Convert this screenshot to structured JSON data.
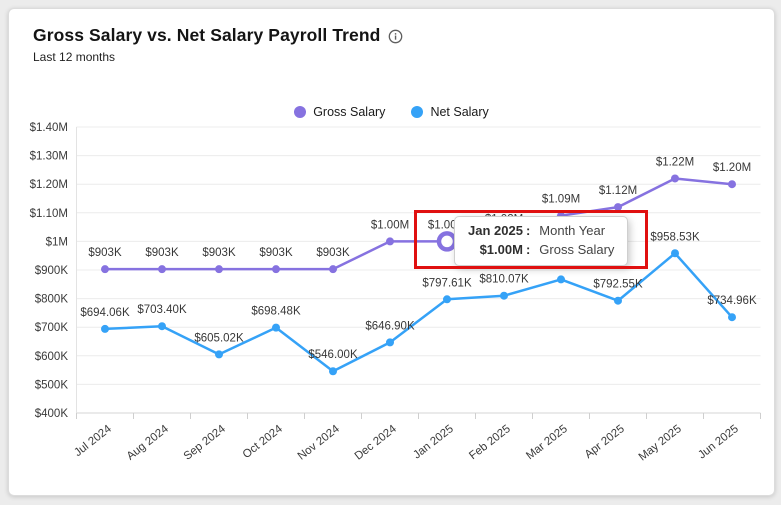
{
  "header": {
    "title": "Gross Salary vs. Net Salary Payroll Trend",
    "subtitle": "Last 12 months"
  },
  "legend": [
    {
      "label": "Gross Salary",
      "color": "#8672E0"
    },
    {
      "label": "Net Salary",
      "color": "#35A2F7"
    }
  ],
  "chart_data": {
    "type": "line",
    "title": "Gross Salary vs. Net Salary Payroll Trend",
    "xlabel": "",
    "ylabel": "",
    "grid": true,
    "legend_position": "top",
    "y_range_k": [
      400,
      1400
    ],
    "y_ticks": [
      "$1.40M",
      "$1.30M",
      "$1.20M",
      "$1.10M",
      "$1M",
      "$900K",
      "$800K",
      "$700K",
      "$600K",
      "$500K",
      "$400K"
    ],
    "categories": [
      "Jul 2024",
      "Aug 2024",
      "Sep 2024",
      "Oct 2024",
      "Nov 2024",
      "Dec 2024",
      "Jan 2025",
      "Feb 2025",
      "Mar 2025",
      "Apr 2025",
      "May 2025",
      "Jun 2025"
    ],
    "series": [
      {
        "name": "Gross Salary",
        "color": "#8672E0",
        "values_k": [
          903,
          903,
          903,
          903,
          903,
          1000,
          1000,
          1020,
          1090,
          1120,
          1220,
          1200
        ],
        "labels": [
          "$903K",
          "$903K",
          "$903K",
          "$903K",
          "$903K",
          "$1.00M",
          "$1.00M",
          "$1.02M",
          "$1.09M",
          "$1.12M",
          "$1.22M",
          "$1.20M"
        ]
      },
      {
        "name": "Net Salary",
        "color": "#35A2F7",
        "values_k": [
          694.06,
          703.4,
          605.02,
          698.48,
          546.0,
          646.9,
          797.61,
          810.07,
          867.07,
          792.55,
          958.53,
          734.96
        ],
        "labels": [
          "$694.06K",
          "$703.40K",
          "$605.02K",
          "$698.48K",
          "$546.00K",
          "$646.90K",
          "$797.61K",
          "$810.07K",
          "$867.07K",
          "$792.55K",
          "$958.53K",
          "$734.96K"
        ]
      }
    ]
  },
  "tooltip": {
    "separator": ":",
    "rows": [
      {
        "value": "Jan 2025",
        "label": "Month Year"
      },
      {
        "value": "$1.00M",
        "label": "Gross Salary"
      }
    ],
    "highlight": {
      "category": "Jan 2025",
      "series": "Gross Salary"
    }
  },
  "annotation": {
    "type": "highlight-box",
    "color": "#e01010"
  }
}
